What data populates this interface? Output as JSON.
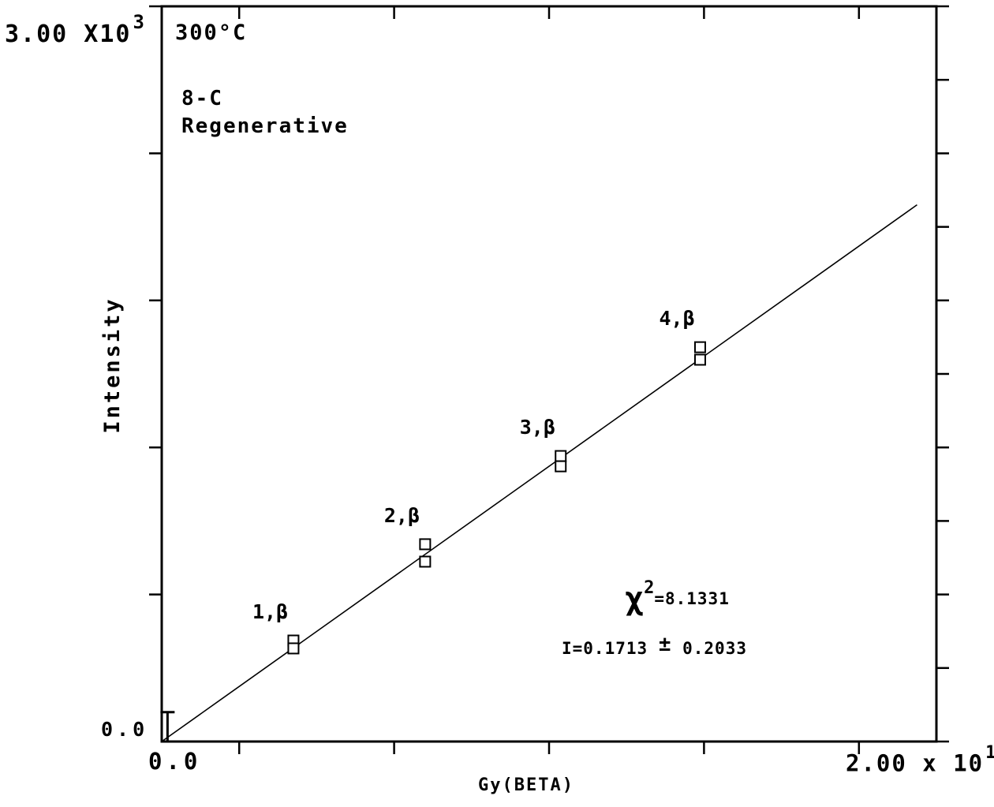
{
  "page": {
    "background": "#ffffff",
    "foreground": "#000000"
  },
  "annotations": {
    "temperature": "300°C",
    "sample": "8-C",
    "method": "Regenerative"
  },
  "y_axis": {
    "label": "Intensity",
    "max_base": "3.00 X10",
    "max_exp": "3",
    "min": "0.0"
  },
  "x_axis": {
    "label": "Gy(BETA)",
    "min": "0.0",
    "max_base": "2.00 x 10",
    "max_exp": "1"
  },
  "stats": {
    "chi_symbol": "χ",
    "chi_exp": "2",
    "chi_value": "=8.1331",
    "intercept_prefix": "I=0.1713",
    "plus_minus": "±",
    "intercept_error": "0.2033"
  },
  "chart_data": {
    "type": "scatter",
    "title": "300°C 8-C Regenerative",
    "xlabel": "Gy(BETA)",
    "ylabel": "Intensity",
    "xlim": [
      0,
      20
    ],
    "ylim": [
      0,
      3000
    ],
    "x_tick_labeled": [
      0,
      20
    ],
    "y_tick_labeled": [
      0,
      3000
    ],
    "x_ticks_minor": [
      2,
      6,
      10,
      14,
      18
    ],
    "y_ticks_left": [
      600,
      1200,
      1800,
      2400,
      3000
    ],
    "y_ticks_right": [
      0,
      300,
      600,
      900,
      1200,
      1500,
      1800,
      2100,
      2400,
      2700,
      3000
    ],
    "grid": false,
    "legend": false,
    "marker": "open-square",
    "points": [
      {
        "x": 3.4,
        "y": 412
      },
      {
        "x": 3.4,
        "y": 380
      },
      {
        "x": 6.8,
        "y": 805
      },
      {
        "x": 6.8,
        "y": 734
      },
      {
        "x": 10.3,
        "y": 1165
      },
      {
        "x": 10.3,
        "y": 1123
      },
      {
        "x": 13.9,
        "y": 1609
      },
      {
        "x": 13.9,
        "y": 1558
      }
    ],
    "point_labels": [
      {
        "text": "1,β",
        "x": 3.4,
        "y": 412
      },
      {
        "text": "2,β",
        "x": 6.8,
        "y": 805
      },
      {
        "text": "3,β",
        "x": 10.3,
        "y": 1165
      },
      {
        "text": "4,β",
        "x": 13.9,
        "y": 1609
      }
    ],
    "fit_line": {
      "x0": 0,
      "y0": 0,
      "x1": 19.5,
      "y1": 2190
    },
    "origin_error_bar": {
      "x": 0.15,
      "y_low": 0,
      "y_high": 120
    },
    "stats": {
      "chi_squared": 8.1331,
      "intercept": 0.1713,
      "intercept_error": 0.2033
    }
  }
}
